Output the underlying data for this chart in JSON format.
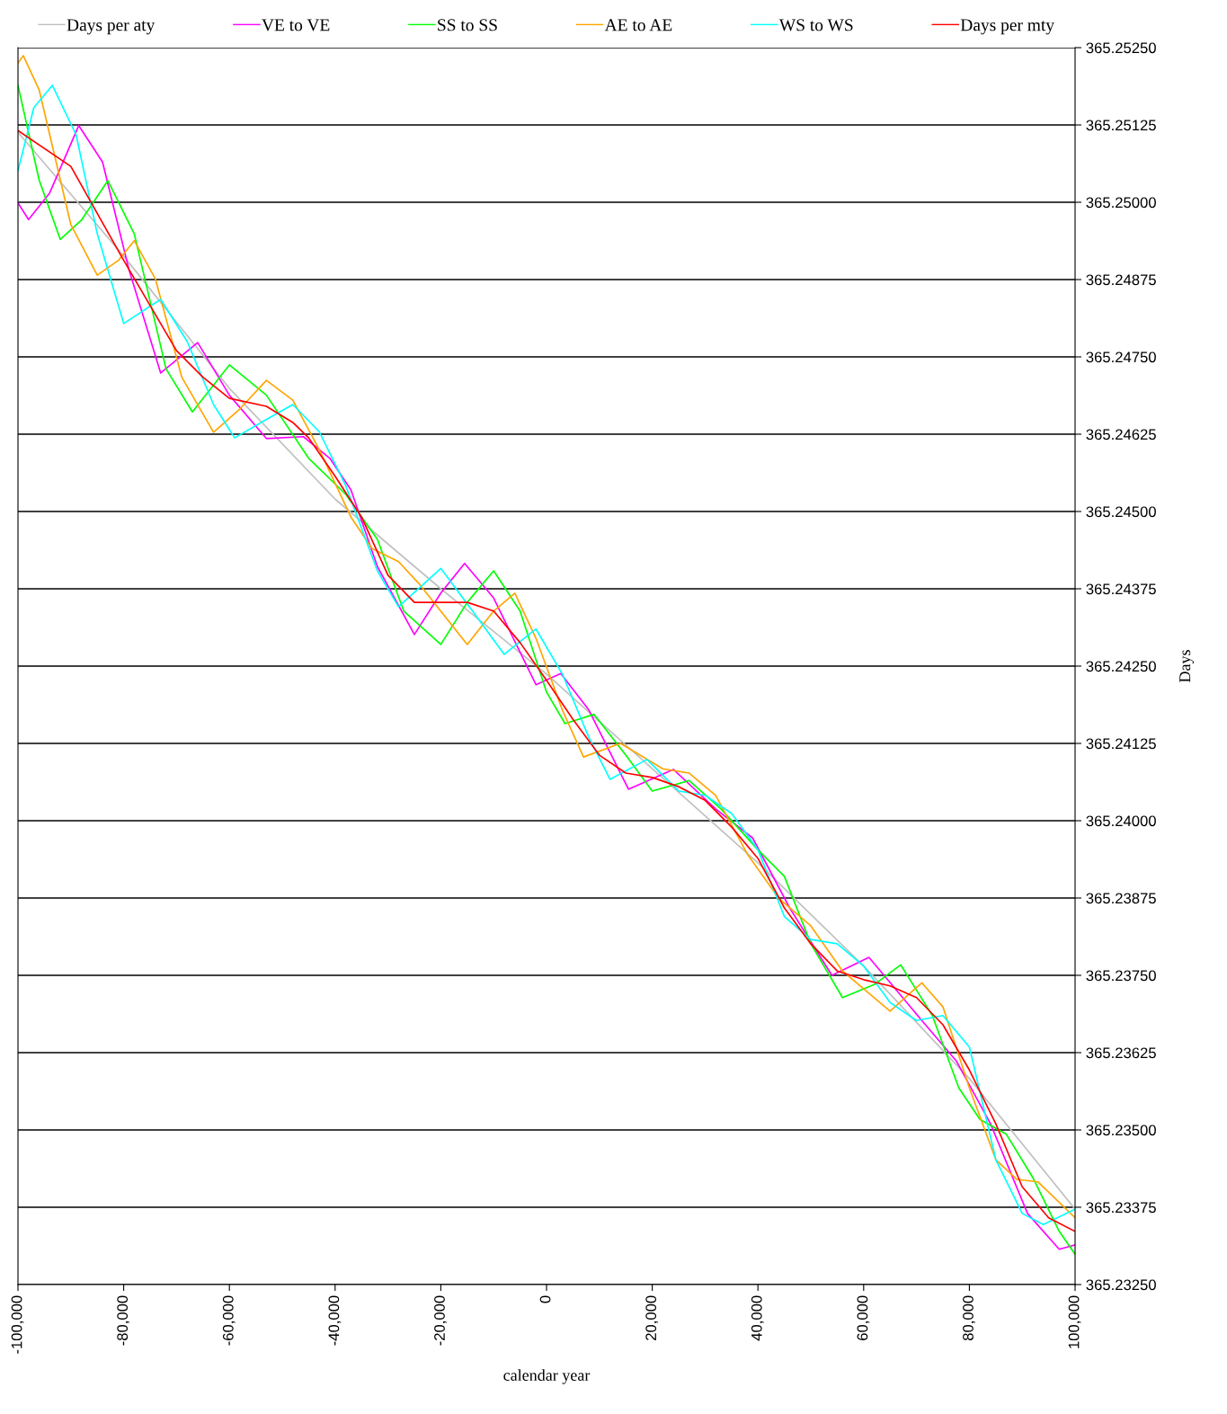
{
  "chart_data": {
    "type": "line",
    "xlabel": "calendar year",
    "ylabel": "Days",
    "grid": "y",
    "legend": "top",
    "marker": "none",
    "line_style": "solid",
    "xlim": [
      -100000,
      100000
    ],
    "ylim": [
      365.2325,
      365.2525
    ],
    "xticks": [
      {
        "value": -100000,
        "label": "-100,000"
      },
      {
        "value": -80000,
        "label": "-80,000"
      },
      {
        "value": -60000,
        "label": "-60,000"
      },
      {
        "value": -40000,
        "label": "-40,000"
      },
      {
        "value": -20000,
        "label": "-20,000"
      },
      0,
      {
        "value": 20000,
        "label": "20,000"
      },
      {
        "value": 40000,
        "label": "40,000"
      },
      {
        "value": 60000,
        "label": "60,000"
      },
      {
        "value": 80000,
        "label": "80,000"
      },
      {
        "value": 100000,
        "label": "100,000"
      }
    ],
    "yticks": [
      {
        "value": 365.2325,
        "label": "365.23250"
      },
      {
        "value": 365.23375,
        "label": "365.23375"
      },
      {
        "value": 365.235,
        "label": "365.23500"
      },
      {
        "value": 365.23625,
        "label": "365.23625"
      },
      {
        "value": 365.2375,
        "label": "365.23750"
      },
      {
        "value": 365.23875,
        "label": "365.23875"
      },
      {
        "value": 365.24,
        "label": "365.24000"
      },
      {
        "value": 365.24125,
        "label": "365.24125"
      },
      {
        "value": 365.2425,
        "label": "365.24250"
      },
      {
        "value": 365.24375,
        "label": "365.24375"
      },
      {
        "value": 365.245,
        "label": "365.24500"
      },
      {
        "value": 365.24625,
        "label": "365.24625"
      },
      {
        "value": 365.2475,
        "label": "365.24750"
      },
      {
        "value": 365.24875,
        "label": "365.24875"
      },
      {
        "value": 365.25,
        "label": "365.25000"
      },
      {
        "value": 365.25125,
        "label": "365.25125"
      },
      {
        "value": 365.2525,
        "label": "365.25250"
      }
    ],
    "series": [
      {
        "name": "Days per aty",
        "color": "#c0c0c0",
        "x": [
          -100000,
          -80000,
          -60000,
          -40000,
          -20000,
          0,
          20000,
          40000,
          60000,
          80000,
          100000
        ],
        "values": [
          365.25113,
          365.24913,
          365.24699,
          365.2452,
          365.24375,
          365.24237,
          365.24084,
          365.23932,
          365.23765,
          365.23583,
          365.23372
        ]
      },
      {
        "name": "VE to VE",
        "color": "#ff00ff",
        "x": [
          -100000,
          -98000,
          -94000,
          -88500,
          -84000,
          -79000,
          -73000,
          -66000,
          -60000,
          -53000,
          -46000,
          -41000,
          -37000,
          -32000,
          -25000,
          -20000,
          -15500,
          -10000,
          -2000,
          2700,
          8000,
          15500,
          24000,
          32000,
          39000,
          46000,
          54000,
          61000,
          71000,
          77500,
          84000,
          91000,
          97000,
          100000
        ],
        "values": [
          365.24999,
          365.24972,
          365.25015,
          365.25124,
          365.25065,
          365.24891,
          365.24724,
          365.24773,
          365.24688,
          365.24618,
          365.24621,
          365.24586,
          365.24535,
          365.24411,
          365.24301,
          365.24368,
          365.24416,
          365.2436,
          365.2422,
          365.24238,
          365.24179,
          365.24051,
          365.24083,
          365.24019,
          365.23972,
          365.23859,
          365.2375,
          365.23779,
          365.23677,
          365.23612,
          365.2351,
          365.23365,
          365.23307,
          365.23314
        ]
      },
      {
        "name": "SS to SS",
        "color": "#00ff00",
        "x": [
          -100000,
          -96000,
          -92000,
          -88000,
          -83000,
          -78000,
          -72000,
          -67000,
          -60000,
          -53000,
          -45000,
          -38000,
          -32000,
          -27000,
          -20000,
          -15000,
          -10000,
          -5000,
          0,
          3500,
          9000,
          15000,
          20000,
          27000,
          33000,
          40000,
          45000,
          50000,
          56000,
          62000,
          67000,
          73000,
          78000,
          82000,
          87000,
          92000,
          97000,
          100000
        ],
        "values": [
          365.25189,
          365.25036,
          365.2494,
          365.24971,
          365.25035,
          365.24949,
          365.24731,
          365.24661,
          365.24737,
          365.24688,
          365.24586,
          365.24528,
          365.24455,
          365.24339,
          365.24285,
          365.24353,
          365.24404,
          365.24339,
          365.24208,
          365.24157,
          365.24172,
          365.24106,
          365.24048,
          365.24065,
          365.24019,
          365.23953,
          365.2391,
          365.23801,
          365.23714,
          365.23735,
          365.23767,
          365.23685,
          365.23568,
          365.23517,
          365.23493,
          365.23423,
          365.23336,
          365.23299
        ]
      },
      {
        "name": "AE to AE",
        "color": "#ffa500",
        "x": [
          -100000,
          -99000,
          -96000,
          -90000,
          -85000,
          -81000,
          -78000,
          -74000,
          -69000,
          -63000,
          -58000,
          -53000,
          -48000,
          -43000,
          -37000,
          -33000,
          -28000,
          -24000,
          -15000,
          -10000,
          -6000,
          -2000,
          3000,
          7000,
          14000,
          22000,
          27000,
          32000,
          38000,
          44000,
          50000,
          56000,
          65000,
          71000,
          75000,
          80000,
          85000,
          89000,
          93000,
          100000
        ],
        "values": [
          365.25225,
          365.25237,
          365.25182,
          365.24964,
          365.24882,
          365.24906,
          365.24938,
          365.24876,
          365.24717,
          365.24628,
          365.24666,
          365.24712,
          365.2468,
          365.246,
          365.24491,
          365.2444,
          365.24419,
          365.24382,
          365.24285,
          365.24339,
          365.24368,
          365.24295,
          365.24179,
          365.24103,
          365.24125,
          365.24084,
          365.24077,
          365.24041,
          365.23946,
          365.23874,
          365.2383,
          365.23757,
          365.23692,
          365.23738,
          365.23699,
          365.23568,
          365.23452,
          365.2342,
          365.23416,
          365.23358
        ]
      },
      {
        "name": "WS to WS",
        "color": "#00ffff",
        "x": [
          -100000,
          -97000,
          -93500,
          -89000,
          -85000,
          -80000,
          -73000,
          -68000,
          -63000,
          -59000,
          -54000,
          -48000,
          -43000,
          -38000,
          -32000,
          -28000,
          -20000,
          -14000,
          -8000,
          -2000,
          3000,
          8000,
          12000,
          19000,
          25000,
          30000,
          35000,
          40000,
          45000,
          50000,
          55000,
          60000,
          65000,
          70000,
          75000,
          80000,
          85000,
          90000,
          94000,
          100000
        ],
        "values": [
          365.25051,
          365.25153,
          365.25189,
          365.25109,
          365.24949,
          365.24804,
          365.24843,
          365.24775,
          365.24673,
          365.24619,
          365.24644,
          365.24673,
          365.24629,
          365.24542,
          365.24404,
          365.24346,
          365.24408,
          365.24339,
          365.24269,
          365.2431,
          365.24237,
          365.24135,
          365.24067,
          365.24099,
          365.24048,
          365.24041,
          365.24012,
          365.23953,
          365.23845,
          365.23808,
          365.23801,
          365.23765,
          365.23706,
          365.23677,
          365.23685,
          365.23634,
          365.23452,
          365.23365,
          365.23347,
          365.23372
        ]
      },
      {
        "name": "Days per mty",
        "color": "#ff0000",
        "x": [
          -100000,
          -90000,
          -80000,
          -70000,
          -65000,
          -60000,
          -53000,
          -48000,
          -45000,
          -40000,
          -35000,
          -30000,
          -25000,
          -15000,
          -10000,
          -5000,
          0,
          5000,
          10000,
          15000,
          20000,
          25000,
          30000,
          35000,
          40000,
          45000,
          50000,
          55000,
          60000,
          65000,
          70000,
          75000,
          80000,
          85000,
          90000,
          95000,
          100000
        ],
        "values": [
          365.25116,
          365.25058,
          365.24906,
          365.2476,
          365.24717,
          365.24683,
          365.2467,
          365.24644,
          365.24619,
          365.24557,
          365.24491,
          365.24397,
          365.24353,
          365.24353,
          365.24339,
          365.24288,
          365.24227,
          365.24164,
          365.24106,
          365.24077,
          365.2407,
          365.24055,
          365.24033,
          365.2399,
          365.23939,
          365.23859,
          365.23801,
          365.23757,
          365.23743,
          365.23733,
          365.23714,
          365.2367,
          365.23597,
          365.2351,
          365.23408,
          365.23358,
          365.23336
        ]
      }
    ]
  }
}
